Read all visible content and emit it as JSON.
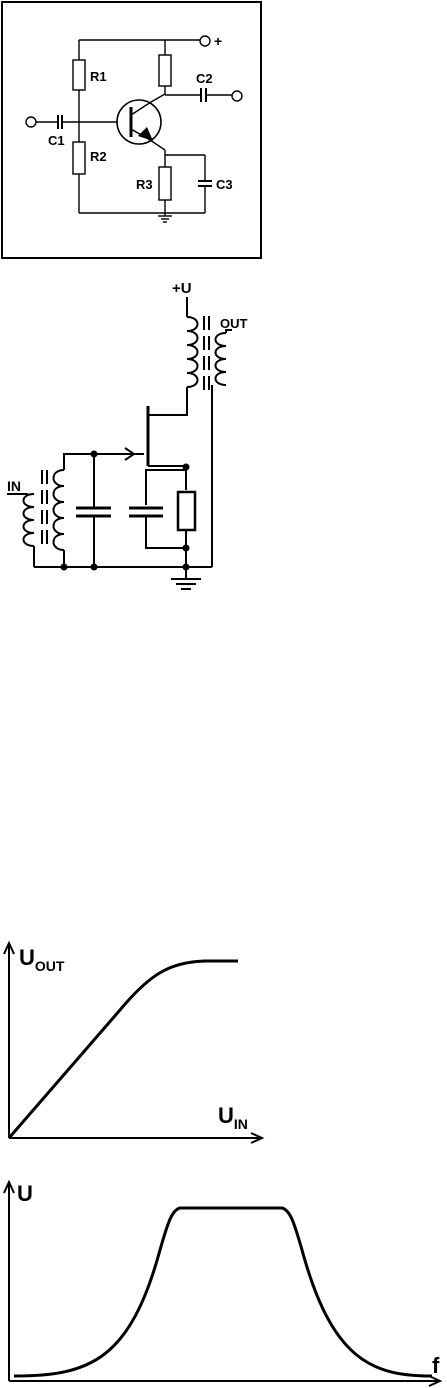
{
  "circuit1": {
    "labels": {
      "r1": "R1",
      "r2": "R2",
      "r3": "R3",
      "c1": "C1",
      "c2": "C2",
      "c3": "C3",
      "plus": "+"
    }
  },
  "circuit2": {
    "labels": {
      "supply": "+U",
      "out": "OUT",
      "in": "IN"
    }
  },
  "graph1": {
    "y_axis": {
      "main": "U",
      "sub": "OUT"
    },
    "x_axis": {
      "main": "U",
      "sub": "IN"
    }
  },
  "graph2": {
    "y_axis": "U",
    "x_axis": "f"
  }
}
